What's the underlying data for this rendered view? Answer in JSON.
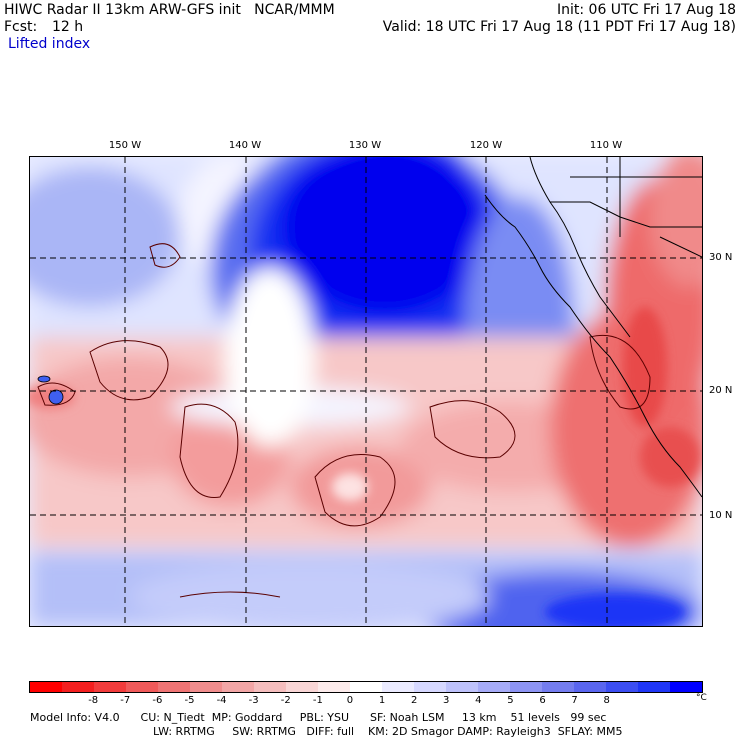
{
  "header": {
    "title": "HIWC Radar II 13km ARW-GFS init   NCAR/MMM",
    "init": "Init: 06 UTC Fri 17 Aug 18",
    "fcst_label": "Fcst:",
    "fcst_value": "12 h",
    "valid": "Valid: 18 UTC Fri 17 Aug 18 (11 PDT Fri 17 Aug 18)",
    "field": "Lifted index"
  },
  "map": {
    "lon_labels": [
      "150 W",
      "140 W",
      "130 W",
      "120 W",
      "110 W"
    ],
    "lat_labels": [
      "30 N",
      "20 N",
      "10 N"
    ],
    "field_colors": {
      "strong_positive": "#0000f0",
      "positive": "#6b7ff0",
      "near_zero": "#f4f4ff",
      "negative": "#f5b0b0",
      "strong_negative": "#ee5a5a"
    }
  },
  "colorbar": {
    "colors": [
      "#ff0000",
      "#f41f1f",
      "#f23c3c",
      "#f05a5a",
      "#ef7474",
      "#f08d8d",
      "#f2a6a6",
      "#f5bebe",
      "#f9d6d6",
      "#fcebeb",
      "#ffffff",
      "#ebebff",
      "#d6d8ff",
      "#bec2fb",
      "#a6abf7",
      "#8d94f3",
      "#747def",
      "#5a66ef",
      "#3c4ef2",
      "#1f36f6",
      "#0000ff"
    ],
    "ticks": [
      "-8",
      "-7",
      "-6",
      "-5",
      "-4",
      "-3",
      "-2",
      "-1",
      "0",
      "1",
      "2",
      "3",
      "4",
      "5",
      "6",
      "7",
      "8"
    ],
    "unit": "°C"
  },
  "footer": {
    "line1": "Model Info: V4.0      CU: N_Tiedt  MP: Goddard     PBL: YSU      SF: Noah LSM     13 km    51 levels   99 sec",
    "line2": "LW: RRTMG     SW: RRTMG   DIFF: full    KM: 2D Smagor DAMP: Rayleigh3  SFLAY: MM5"
  }
}
